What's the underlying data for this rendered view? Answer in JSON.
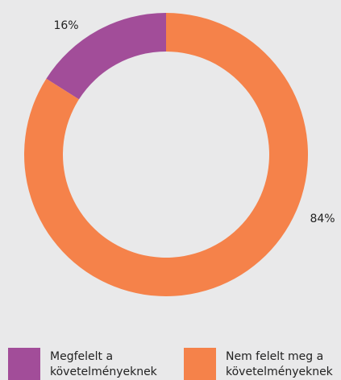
{
  "chart_data": {
    "type": "pie",
    "donut": true,
    "direction": "counterclockwise",
    "start": "top",
    "series": [
      {
        "name": "Megfelelt a követelményeknek",
        "color": "#a24d99",
        "values": [
          16
        ],
        "value_labels": [
          "16%"
        ]
      },
      {
        "name": "Nem felelt meg a követelményeknek",
        "color": "#f5824a",
        "values": [
          84
        ],
        "value_labels": [
          "84%"
        ]
      }
    ]
  }
}
